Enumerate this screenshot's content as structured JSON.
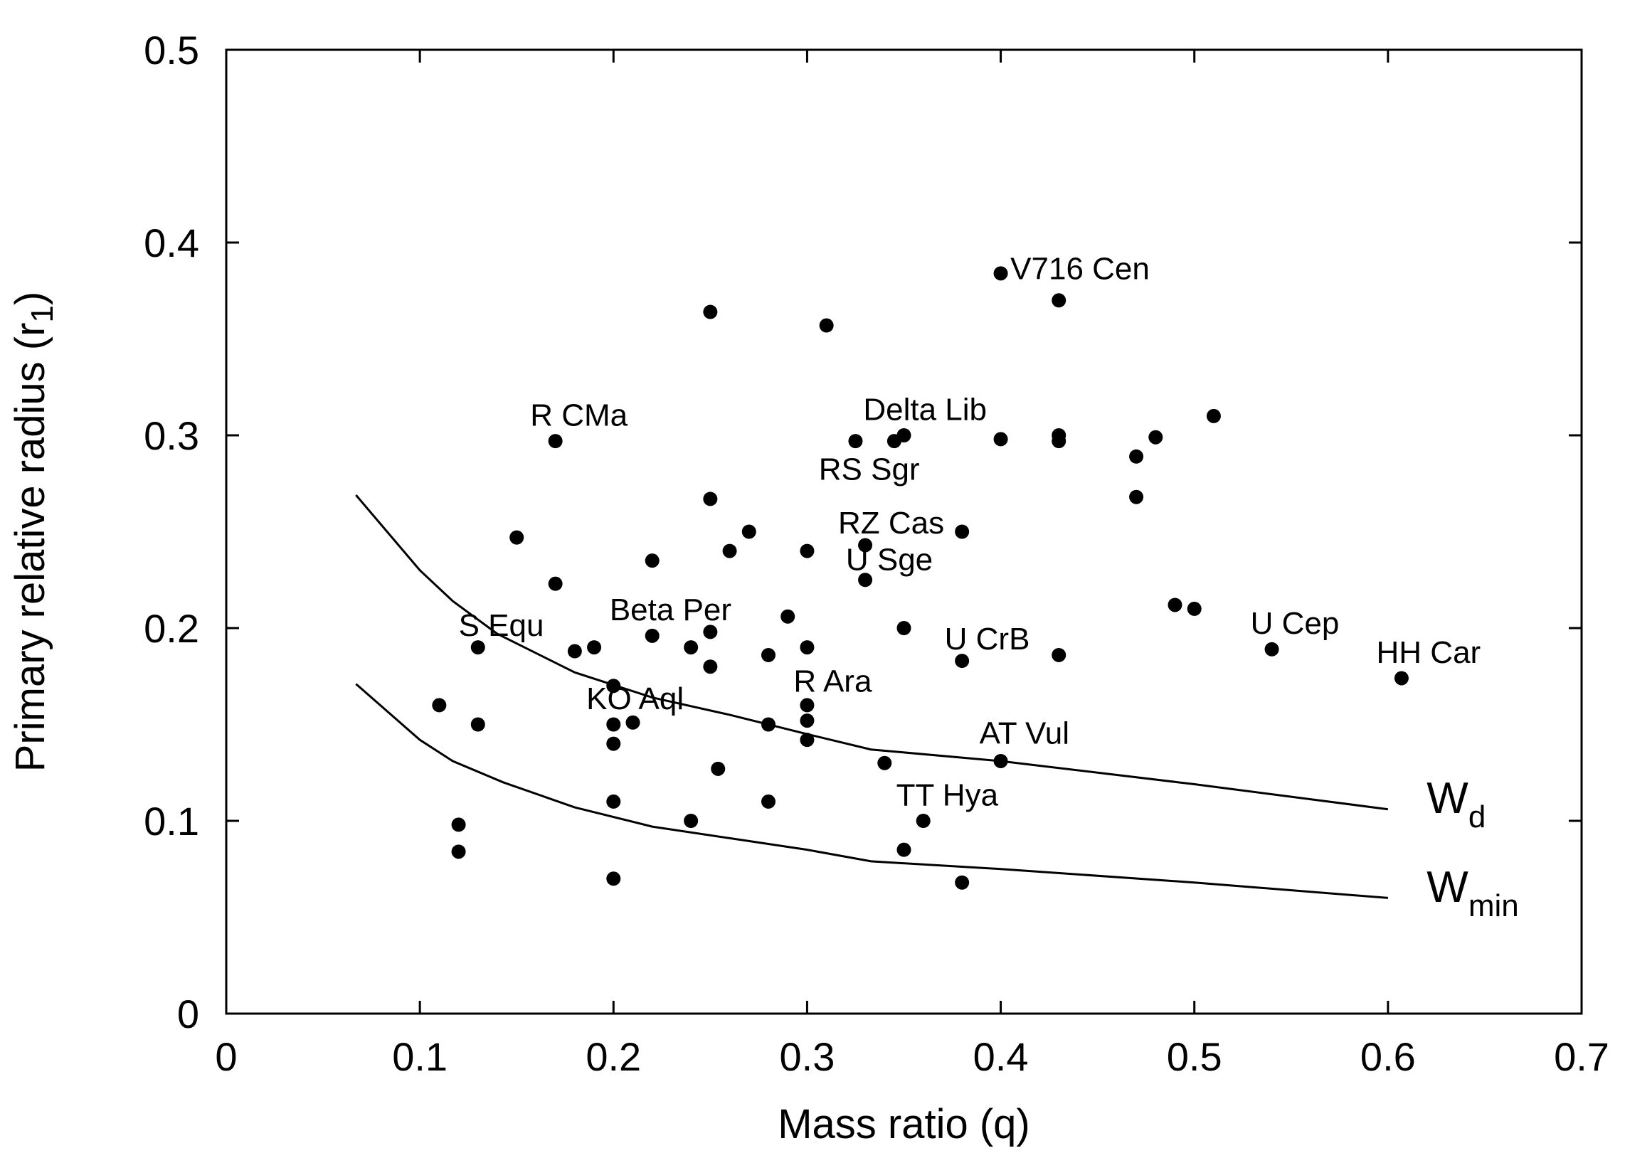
{
  "chart_data": {
    "type": "scatter",
    "xlabel": "Mass ratio (q)",
    "ylabel_main": "Primary relative radius (r",
    "ylabel_sub": "1",
    "ylabel_close": ")",
    "xlim": [
      0,
      0.7
    ],
    "ylim": [
      0,
      0.5
    ],
    "x_ticks": [
      0,
      0.1,
      0.2,
      0.3,
      0.4,
      0.5,
      0.6,
      0.7
    ],
    "x_tick_labels": [
      "0",
      "0.1",
      "0.2",
      "0.3",
      "0.4",
      "0.5",
      "0.6",
      "0.7"
    ],
    "y_ticks": [
      0,
      0.1,
      0.2,
      0.3,
      0.4,
      0.5
    ],
    "y_tick_labels": [
      "0",
      "0.1",
      "0.2",
      "0.3",
      "0.4",
      "0.5"
    ],
    "grid": false,
    "points": [
      [
        0.4,
        0.384
      ],
      [
        0.43,
        0.37
      ],
      [
        0.25,
        0.364
      ],
      [
        0.31,
        0.357
      ],
      [
        0.17,
        0.297
      ],
      [
        0.325,
        0.297
      ],
      [
        0.345,
        0.297
      ],
      [
        0.35,
        0.3
      ],
      [
        0.4,
        0.298
      ],
      [
        0.43,
        0.297
      ],
      [
        0.43,
        0.3
      ],
      [
        0.47,
        0.289
      ],
      [
        0.48,
        0.299
      ],
      [
        0.51,
        0.31
      ],
      [
        0.47,
        0.268
      ],
      [
        0.25,
        0.267
      ],
      [
        0.15,
        0.247
      ],
      [
        0.27,
        0.25
      ],
      [
        0.38,
        0.25
      ],
      [
        0.33,
        0.243
      ],
      [
        0.26,
        0.24
      ],
      [
        0.3,
        0.24
      ],
      [
        0.22,
        0.235
      ],
      [
        0.17,
        0.223
      ],
      [
        0.33,
        0.225
      ],
      [
        0.49,
        0.212
      ],
      [
        0.5,
        0.21
      ],
      [
        0.29,
        0.206
      ],
      [
        0.35,
        0.2
      ],
      [
        0.25,
        0.198
      ],
      [
        0.22,
        0.196
      ],
      [
        0.13,
        0.19
      ],
      [
        0.18,
        0.188
      ],
      [
        0.19,
        0.19
      ],
      [
        0.24,
        0.19
      ],
      [
        0.28,
        0.186
      ],
      [
        0.3,
        0.19
      ],
      [
        0.54,
        0.189
      ],
      [
        0.38,
        0.183
      ],
      [
        0.43,
        0.186
      ],
      [
        0.25,
        0.18
      ],
      [
        0.607,
        0.174
      ],
      [
        0.2,
        0.17
      ],
      [
        0.11,
        0.16
      ],
      [
        0.3,
        0.16
      ],
      [
        0.13,
        0.15
      ],
      [
        0.2,
        0.15
      ],
      [
        0.21,
        0.151
      ],
      [
        0.28,
        0.15
      ],
      [
        0.3,
        0.152
      ],
      [
        0.2,
        0.14
      ],
      [
        0.3,
        0.142
      ],
      [
        0.34,
        0.13
      ],
      [
        0.4,
        0.131
      ],
      [
        0.254,
        0.127
      ],
      [
        0.2,
        0.11
      ],
      [
        0.28,
        0.11
      ],
      [
        0.24,
        0.1
      ],
      [
        0.36,
        0.1
      ],
      [
        0.12,
        0.098
      ],
      [
        0.12,
        0.084
      ],
      [
        0.35,
        0.085
      ],
      [
        0.2,
        0.07
      ],
      [
        0.38,
        0.068
      ]
    ],
    "annotations": [
      {
        "text": "V716 Cen",
        "x": 0.405,
        "y": 0.381,
        "anchor": "start"
      },
      {
        "text": "R CMa",
        "x": 0.157,
        "y": 0.305,
        "anchor": "start"
      },
      {
        "text": "Delta Lib",
        "x": 0.329,
        "y": 0.308,
        "anchor": "start"
      },
      {
        "text": "RS Sgr",
        "x": 0.306,
        "y": 0.277,
        "anchor": "start"
      },
      {
        "text": "RZ Cas",
        "x": 0.316,
        "y": 0.249,
        "anchor": "start"
      },
      {
        "text": "U Sge",
        "x": 0.32,
        "y": 0.23,
        "anchor": "start"
      },
      {
        "text": "S Equ",
        "x": 0.12,
        "y": 0.196,
        "anchor": "start"
      },
      {
        "text": "Beta Per",
        "x": 0.198,
        "y": 0.204,
        "anchor": "start"
      },
      {
        "text": "U CrB",
        "x": 0.371,
        "y": 0.189,
        "anchor": "start"
      },
      {
        "text": "U Cep",
        "x": 0.529,
        "y": 0.197,
        "anchor": "start"
      },
      {
        "text": "HH Car",
        "x": 0.594,
        "y": 0.182,
        "anchor": "start"
      },
      {
        "text": "R Ara",
        "x": 0.293,
        "y": 0.167,
        "anchor": "start"
      },
      {
        "text": "KO Aql",
        "x": 0.186,
        "y": 0.158,
        "anchor": "start"
      },
      {
        "text": "AT Vul",
        "x": 0.389,
        "y": 0.14,
        "anchor": "start"
      },
      {
        "text": "TT Hya",
        "x": 0.346,
        "y": 0.108,
        "anchor": "start"
      }
    ],
    "series": [
      {
        "name": "Wd",
        "label_main": "W",
        "label_sub": "d",
        "label_x": 0.62,
        "label_y": 0.104,
        "x": [
          0.067,
          0.1,
          0.117,
          0.14,
          0.18,
          0.22,
          0.26,
          0.3,
          0.333,
          0.4,
          0.5,
          0.6
        ],
        "y": [
          0.269,
          0.23,
          0.214,
          0.197,
          0.177,
          0.164,
          0.155,
          0.145,
          0.137,
          0.131,
          0.119,
          0.106
        ]
      },
      {
        "name": "Wmin",
        "label_main": "W",
        "label_sub": "min",
        "label_x": 0.62,
        "label_y": 0.058,
        "x": [
          0.067,
          0.1,
          0.117,
          0.143,
          0.18,
          0.22,
          0.26,
          0.3,
          0.333,
          0.4,
          0.5,
          0.6
        ],
        "y": [
          0.171,
          0.142,
          0.131,
          0.12,
          0.107,
          0.097,
          0.091,
          0.085,
          0.079,
          0.075,
          0.068,
          0.06
        ]
      }
    ]
  }
}
